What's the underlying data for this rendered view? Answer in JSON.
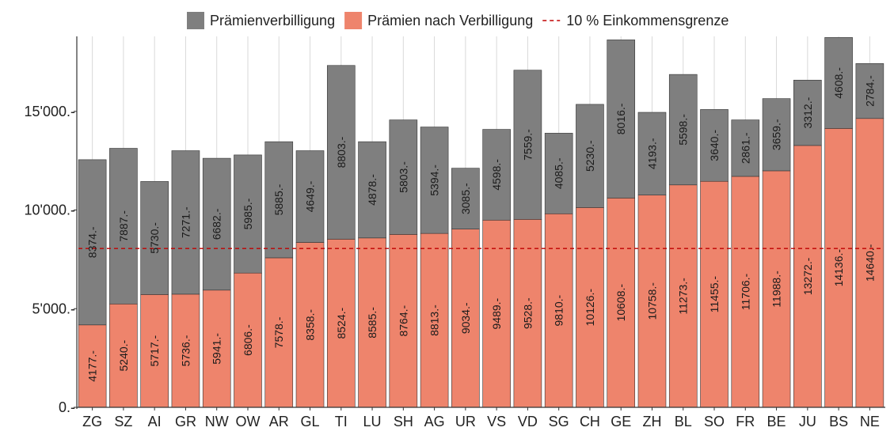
{
  "chart_data": {
    "type": "bar",
    "stacked": true,
    "categories": [
      "ZG",
      "SZ",
      "AI",
      "GR",
      "NW",
      "OW",
      "AR",
      "GL",
      "TI",
      "LU",
      "SH",
      "AG",
      "UR",
      "VS",
      "VD",
      "SG",
      "CH",
      "GE",
      "ZH",
      "BL",
      "SO",
      "FR",
      "BE",
      "JU",
      "BS",
      "NE"
    ],
    "series": [
      {
        "name": "Prämien nach Verbilligung",
        "color": "#ee846c",
        "values": [
          4177,
          5240,
          5717,
          5736,
          5941,
          6806,
          7578,
          8358,
          8524,
          8585,
          8764,
          8813,
          9034,
          9489,
          9528,
          9810,
          10126,
          10608,
          10758,
          11273,
          11455,
          11706,
          11988,
          13272,
          14136,
          14640
        ],
        "labels": [
          "4177.-",
          "5240.-",
          "5717.-",
          "5736.-",
          "5941.-",
          "6806.-",
          "7578.-",
          "8358.-",
          "8524.-",
          "8585.-",
          "8764.-",
          "8813.-",
          "9034.-",
          "9489.-",
          "9528.-",
          "9810.-",
          "10126.-",
          "10608.-",
          "10758.-",
          "11273.-",
          "11455.-",
          "11706.-",
          "11988.-",
          "13272.-",
          "14136.-",
          "14640.-"
        ]
      },
      {
        "name": "Prämienverbilligung",
        "color": "#7f7f7f",
        "values": [
          8374,
          7887,
          5730,
          7271,
          6682,
          5985,
          5885,
          4649,
          8803,
          4878,
          5803,
          5394,
          3085,
          4598,
          7559,
          4085,
          5230,
          8016,
          4193,
          5598,
          3640,
          2861,
          3659,
          3312,
          4608,
          2784
        ],
        "labels": [
          "8374.-",
          "7887.-",
          "5730.-",
          "7271.-",
          "6682.-",
          "5985.-",
          "5885.-",
          "4649.-",
          "8803.-",
          "4878.-",
          "5803.-",
          "5394.-",
          "3085.-",
          "4598.-",
          "7559.-",
          "4085.-",
          "5230.-",
          "8016.-",
          "4193.-",
          "5598.-",
          "3640.-",
          "2861.-",
          "3659.-",
          "3312.-",
          "4608.-",
          "2784.-"
        ]
      }
    ],
    "reference_line": {
      "name": "10 % Einkommensgrenze",
      "value": 8050,
      "color": "#c00000",
      "style": "dashed"
    },
    "legend": {
      "position": "top",
      "items": [
        {
          "label": "Prämienverbilligung",
          "color": "#7f7f7f",
          "kind": "box"
        },
        {
          "label": "Prämien nach Verbilligung",
          "color": "#ee846c",
          "kind": "box"
        },
        {
          "label": "10 % Einkommensgrenze",
          "color": "#c00000",
          "kind": "dashed-line"
        }
      ]
    },
    "yticks": [
      {
        "value": 0,
        "label": "0.-"
      },
      {
        "value": 5000,
        "label": "5'000.-"
      },
      {
        "value": 10000,
        "label": "10'000.-"
      },
      {
        "value": 15000,
        "label": "15'000.-"
      }
    ],
    "ylim": [
      0,
      18800
    ],
    "grid": {
      "vertical": true,
      "horizontal": false
    },
    "title": "",
    "xlabel": "",
    "ylabel": ""
  }
}
